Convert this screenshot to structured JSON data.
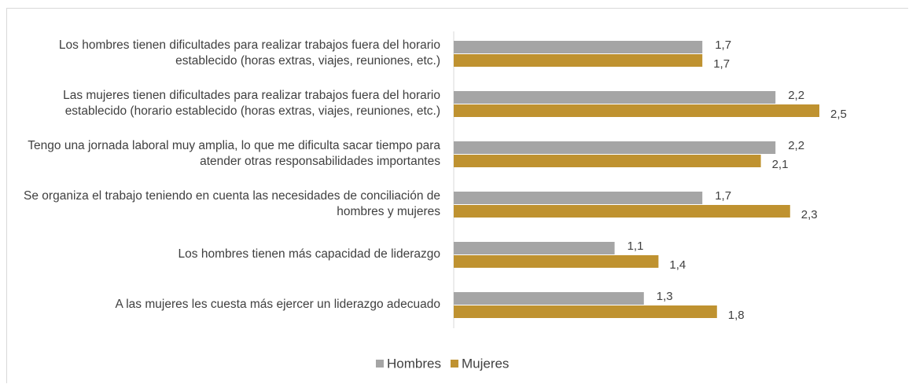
{
  "chart_data": {
    "type": "bar",
    "orientation": "horizontal",
    "categories": [
      "Los hombres tienen dificultades para realizar trabajos fuera del horario establecido (horas extras, viajes, reuniones, etc.)",
      "Las mujeres tienen dificultades para realizar trabajos fuera del horario establecido (horario establecido (horas extras, viajes, reuniones, etc.)",
      "Tengo una jornada laboral muy amplia, lo que me dificulta sacar tiempo para atender otras responsabilidades importantes",
      "Se organiza el trabajo teniendo en cuenta las necesidades de conciliación de hombres y mujeres",
      "Los hombres tienen más capacidad de liderazgo",
      "A las mujeres les cuesta más ejercer un liderazgo adecuado"
    ],
    "series": [
      {
        "name": "Hombres",
        "color": "#a5a5a5",
        "values": [
          1.7,
          2.2,
          2.2,
          1.7,
          1.1,
          1.3
        ],
        "value_labels": [
          "1,7",
          "2,2",
          "2,2",
          "1,7",
          "1,1",
          "1,3"
        ]
      },
      {
        "name": "Mujeres",
        "color": "#bf9230",
        "values": [
          1.7,
          2.5,
          2.1,
          2.3,
          1.4,
          1.8
        ],
        "value_labels": [
          "1,7",
          "2,5",
          "2,1",
          "2,3",
          "1,4",
          "1,8"
        ]
      }
    ],
    "legend": "bottom"
  }
}
